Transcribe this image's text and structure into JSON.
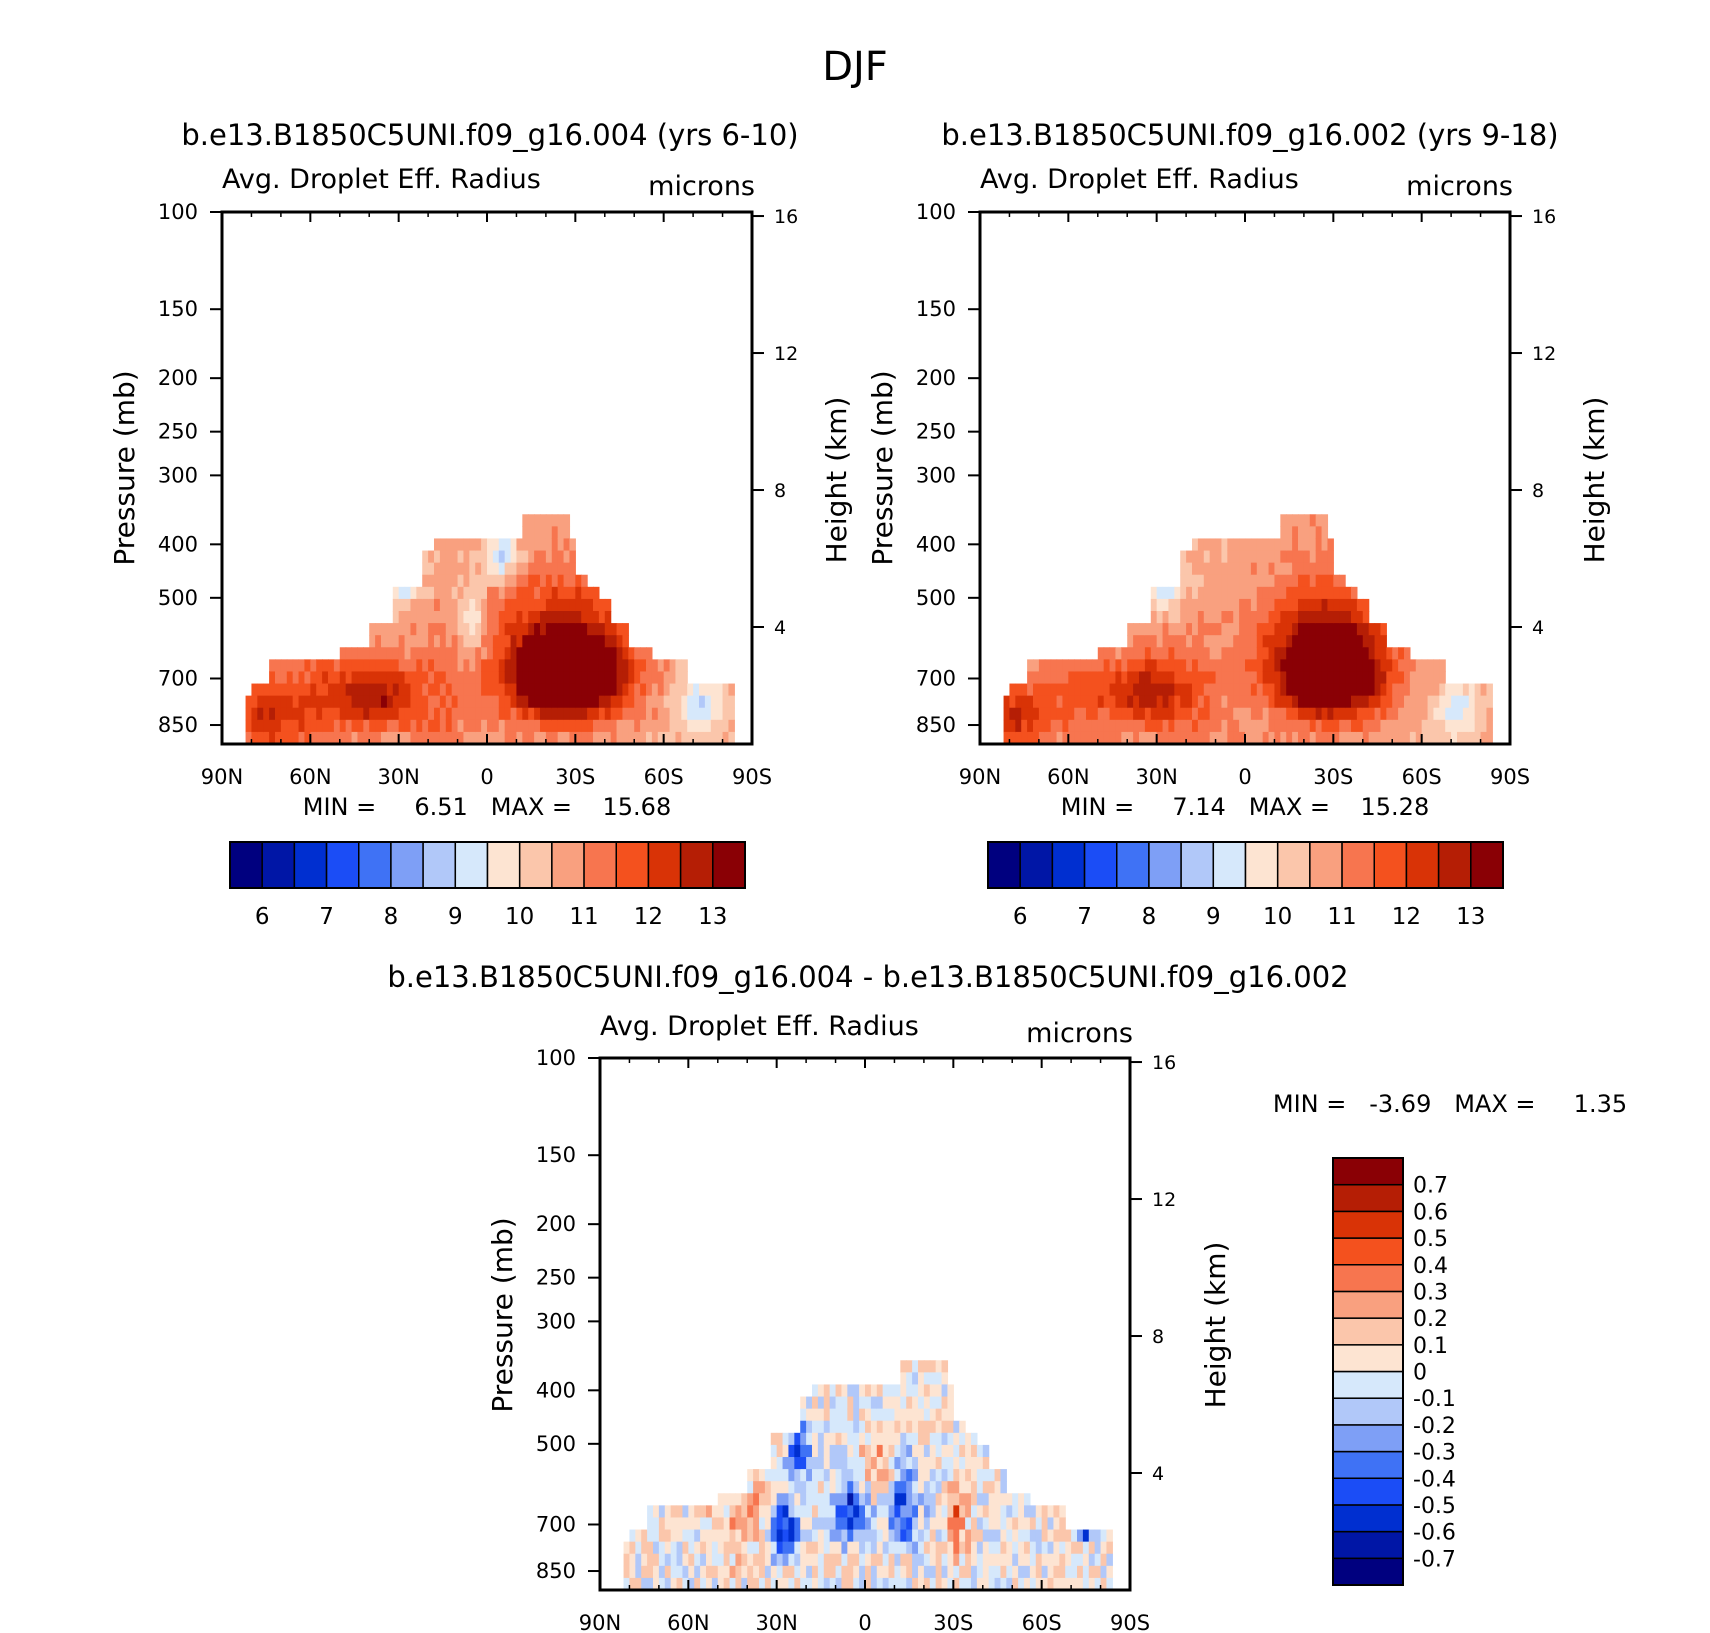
{
  "figure_title": "DJF",
  "colors": {
    "abs_palette": [
      "#00007f",
      "#0016a6",
      "#002fd0",
      "#1b4df6",
      "#3f72f5",
      "#7e9ff6",
      "#b1c8f9",
      "#d6e8fb",
      "#fde4d2",
      "#fbc6ab",
      "#f9a07f",
      "#f7754f",
      "#f4511e",
      "#d93306",
      "#b51e05",
      "#8a0005"
    ],
    "diff_palette": [
      "#00007f",
      "#0016a6",
      "#002fd0",
      "#1b4df6",
      "#3f72f5",
      "#7e9ff6",
      "#b1c8f9",
      "#d6e8fb",
      "#fde4d2",
      "#fbc6ab",
      "#f9a07f",
      "#f7754f",
      "#f4511e",
      "#d93306",
      "#b51e05",
      "#8a0005"
    ]
  },
  "chart_data": [
    {
      "type": "heatmap",
      "title": "b.e13.B1850C5UNI.f09_g16.004 (yrs 6-10)",
      "left_string": "Avg. Droplet Eff. Radius",
      "right_string": "microns",
      "xlabel": "",
      "ylabel": "Pressure (mb)",
      "ylabel_right": "Height (km)",
      "x_ticks": [
        "90N",
        "60N",
        "30N",
        "0",
        "30S",
        "60S",
        "90S"
      ],
      "x_range": [
        90,
        -90
      ],
      "y_ticks": [
        "100",
        "150",
        "200",
        "250",
        "300",
        "400",
        "500",
        "700",
        "850"
      ],
      "y_range": [
        100,
        920
      ],
      "y_right_ticks": [
        "16",
        "12",
        "8",
        "4"
      ],
      "stats_label": "MIN =     6.51   MAX =    15.68",
      "min": 6.51,
      "max": 15.68,
      "colorbar_levels": [
        5.5,
        6,
        6.5,
        7,
        7.5,
        8,
        8.5,
        9,
        9.5,
        10,
        10.5,
        11,
        11.5,
        12,
        12.5,
        13,
        13.5
      ],
      "colorbar_labels": [
        "6",
        "7",
        "8",
        "9",
        "10",
        "11",
        "12",
        "13"
      ],
      "cloud_top_mb": [
        [
          82,
          850
        ],
        [
          80,
          760
        ],
        [
          74,
          700
        ],
        [
          66,
          640
        ],
        [
          50,
          640
        ],
        [
          40,
          600
        ],
        [
          33,
          560
        ],
        [
          32,
          500
        ],
        [
          30,
          480
        ],
        [
          22,
          480
        ],
        [
          18,
          420
        ],
        [
          10,
          400
        ],
        [
          7,
          400
        ],
        [
          2,
          400
        ],
        [
          -12,
          400
        ],
        [
          -14,
          350
        ],
        [
          -28,
          350
        ],
        [
          -29,
          400
        ],
        [
          -34,
          450
        ],
        [
          -37,
          470
        ],
        [
          -42,
          510
        ],
        [
          -47,
          560
        ],
        [
          -56,
          610
        ],
        [
          -62,
          650
        ],
        [
          -68,
          650
        ],
        [
          -73,
          700
        ],
        [
          -84,
          700
        ],
        [
          -84,
          920
        ]
      ],
      "features": [
        {
          "lat": -28,
          "p": 700,
          "value": 13.6,
          "sx": 18,
          "sp": 120
        },
        {
          "lat": -25,
          "p": 640,
          "value": 12.8,
          "sx": 24,
          "sp": 180
        },
        {
          "lat": 37,
          "p": 750,
          "value": 12.6,
          "sx": 12,
          "sp": 100
        },
        {
          "lat": 75,
          "p": 820,
          "value": 12.4,
          "sx": 12,
          "sp": 120
        },
        {
          "lat": 55,
          "p": 760,
          "value": 11.8,
          "sx": 14,
          "sp": 150
        },
        {
          "lat": 18,
          "p": 780,
          "value": 11.4,
          "sx": 14,
          "sp": 200
        },
        {
          "lat": 5,
          "p": 560,
          "value": 9.3,
          "sx": 5,
          "sp": 90
        },
        {
          "lat": 28,
          "p": 450,
          "value": 8.2,
          "sx": 5,
          "sp": 50
        },
        {
          "lat": -5,
          "p": 420,
          "value": 8.8,
          "sx": 6,
          "sp": 40
        },
        {
          "lat": -72,
          "p": 790,
          "value": 9.0,
          "sx": 8,
          "sp": 100
        }
      ],
      "base_value": 10.6
    },
    {
      "type": "heatmap",
      "title": "b.e13.B1850C5UNI.f09_g16.002 (yrs 9-18)",
      "left_string": "Avg. Droplet Eff. Radius",
      "right_string": "microns",
      "xlabel": "",
      "ylabel": "Pressure (mb)",
      "ylabel_right": "Height (km)",
      "x_ticks": [
        "90N",
        "60N",
        "30N",
        "0",
        "30S",
        "60S",
        "90S"
      ],
      "x_range": [
        90,
        -90
      ],
      "y_ticks": [
        "100",
        "150",
        "200",
        "250",
        "300",
        "400",
        "500",
        "700",
        "850"
      ],
      "y_range": [
        100,
        920
      ],
      "y_right_ticks": [
        "16",
        "12",
        "8",
        "4"
      ],
      "stats_label": "MIN =     7.14   MAX =    15.28",
      "min": 7.14,
      "max": 15.28,
      "colorbar_levels": [
        5.5,
        6,
        6.5,
        7,
        7.5,
        8,
        8.5,
        9,
        9.5,
        10,
        10.5,
        11,
        11.5,
        12,
        12.5,
        13,
        13.5
      ],
      "colorbar_labels": [
        "6",
        "7",
        "8",
        "9",
        "10",
        "11",
        "12",
        "13"
      ],
      "cloud_top_mb": [
        [
          82,
          850
        ],
        [
          80,
          760
        ],
        [
          74,
          700
        ],
        [
          66,
          640
        ],
        [
          50,
          640
        ],
        [
          40,
          600
        ],
        [
          33,
          560
        ],
        [
          32,
          500
        ],
        [
          30,
          480
        ],
        [
          22,
          480
        ],
        [
          18,
          420
        ],
        [
          10,
          400
        ],
        [
          7,
          400
        ],
        [
          2,
          400
        ],
        [
          -12,
          400
        ],
        [
          -14,
          350
        ],
        [
          -28,
          350
        ],
        [
          -29,
          400
        ],
        [
          -34,
          450
        ],
        [
          -37,
          470
        ],
        [
          -42,
          510
        ],
        [
          -47,
          560
        ],
        [
          -56,
          610
        ],
        [
          -62,
          650
        ],
        [
          -68,
          650
        ],
        [
          -73,
          700
        ],
        [
          -84,
          700
        ],
        [
          -84,
          920
        ]
      ],
      "features": [
        {
          "lat": -30,
          "p": 690,
          "value": 13.6,
          "sx": 16,
          "sp": 120
        },
        {
          "lat": -26,
          "p": 640,
          "value": 12.8,
          "sx": 22,
          "sp": 180
        },
        {
          "lat": 33,
          "p": 740,
          "value": 12.5,
          "sx": 12,
          "sp": 100
        },
        {
          "lat": 78,
          "p": 820,
          "value": 12.4,
          "sx": 10,
          "sp": 120
        },
        {
          "lat": 55,
          "p": 760,
          "value": 11.8,
          "sx": 14,
          "sp": 150
        },
        {
          "lat": 18,
          "p": 780,
          "value": 11.4,
          "sx": 14,
          "sp": 200
        },
        {
          "lat": 27,
          "p": 460,
          "value": 8.5,
          "sx": 6,
          "sp": 60
        },
        {
          "lat": -72,
          "p": 800,
          "value": 9.2,
          "sx": 8,
          "sp": 100
        }
      ],
      "base_value": 10.6
    },
    {
      "type": "heatmap",
      "title": "b.e13.B1850C5UNI.f09_g16.004 - b.e13.B1850C5UNI.f09_g16.002",
      "left_string": "Avg. Droplet Eff. Radius",
      "right_string": "microns",
      "xlabel": "",
      "ylabel": "Pressure (mb)",
      "ylabel_right": "Height (km)",
      "x_ticks": [
        "90N",
        "60N",
        "30N",
        "0",
        "30S",
        "60S",
        "90S"
      ],
      "x_range": [
        90,
        -90
      ],
      "y_ticks": [
        "100",
        "150",
        "200",
        "250",
        "300",
        "400",
        "500",
        "700",
        "850"
      ],
      "y_range": [
        100,
        920
      ],
      "y_right_ticks": [
        "16",
        "12",
        "8",
        "4"
      ],
      "stats_label": "MIN =   -3.69   MAX =     1.35",
      "min": -3.69,
      "max": 1.35,
      "colorbar_levels": [
        -0.8,
        -0.7,
        -0.6,
        -0.5,
        -0.4,
        -0.3,
        -0.2,
        -0.1,
        0,
        0.1,
        0.2,
        0.3,
        0.4,
        0.5,
        0.6,
        0.7,
        0.8
      ],
      "colorbar_labels": [
        "0.7",
        "0.6",
        "0.5",
        "0.4",
        "0.3",
        "0.2",
        "0.1",
        "0",
        "-0.1",
        "-0.2",
        "-0.3",
        "-0.4",
        "-0.5",
        "-0.6",
        "-0.7"
      ],
      "cloud_top_mb": [
        [
          82,
          850
        ],
        [
          80,
          760
        ],
        [
          74,
          700
        ],
        [
          66,
          640
        ],
        [
          50,
          640
        ],
        [
          40,
          600
        ],
        [
          33,
          560
        ],
        [
          32,
          500
        ],
        [
          30,
          480
        ],
        [
          22,
          480
        ],
        [
          18,
          420
        ],
        [
          10,
          400
        ],
        [
          7,
          400
        ],
        [
          2,
          400
        ],
        [
          -12,
          400
        ],
        [
          -14,
          350
        ],
        [
          -28,
          350
        ],
        [
          -29,
          400
        ],
        [
          -34,
          450
        ],
        [
          -37,
          470
        ],
        [
          -42,
          510
        ],
        [
          -47,
          560
        ],
        [
          -56,
          610
        ],
        [
          -62,
          650
        ],
        [
          -68,
          650
        ],
        [
          -73,
          700
        ],
        [
          -84,
          700
        ],
        [
          -84,
          920
        ]
      ],
      "features": [
        {
          "lat": 5,
          "p": 660,
          "value": -0.55,
          "sx": 6,
          "sp": 90
        },
        {
          "lat": 28,
          "p": 720,
          "value": -0.6,
          "sx": 5,
          "sp": 90
        },
        {
          "lat": -13,
          "p": 650,
          "value": -0.45,
          "sx": 6,
          "sp": 110
        },
        {
          "lat": 22,
          "p": 520,
          "value": -0.5,
          "sx": 4,
          "sp": 60
        },
        {
          "lat": -31,
          "p": 680,
          "value": 0.45,
          "sx": 3,
          "sp": 80
        },
        {
          "lat": -5,
          "p": 560,
          "value": 0.25,
          "sx": 6,
          "sp": 80
        },
        {
          "lat": -75,
          "p": 700,
          "value": -0.7,
          "sx": 3,
          "sp": 40
        },
        {
          "lat": 40,
          "p": 700,
          "value": 0.2,
          "sx": 10,
          "sp": 120
        }
      ],
      "base_value": 0.02
    }
  ]
}
